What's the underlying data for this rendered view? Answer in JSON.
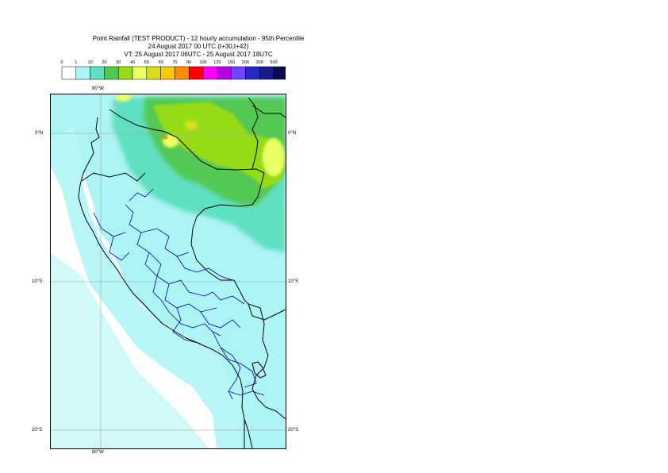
{
  "title": {
    "line1": "Point Rainfall (TEST PRODUCT) - 12 hourly accumulation - 95th Percentile",
    "line2": "24 August 2017 00 UTC (t+30,t+42)",
    "line3": "VT: 25 August 2017 06UTC - 25 August 2017 18UTC"
  },
  "legend": {
    "thresholds": [
      "0",
      "1",
      "10",
      "20",
      "30",
      "40",
      "50",
      "60",
      "70",
      "80",
      "100",
      "125",
      "150",
      "200",
      "300",
      "500"
    ],
    "colors": [
      "#ffffff",
      "#adf4f4",
      "#5fe0c0",
      "#52c852",
      "#96dc19",
      "#ebff64",
      "#dcdc1e",
      "#ffc800",
      "#ff8c00",
      "#ff0000",
      "#ff00ff",
      "#b400dc",
      "#6e46ff",
      "#2828c8",
      "#1a1a8c",
      "#0a0a50"
    ]
  },
  "axes": {
    "lon_top": "80°W",
    "lon_bottom": "80°W",
    "lat_labels": [
      "0°N",
      "10°S",
      "20°S"
    ]
  },
  "colors": {
    "land_outline": "#000000",
    "admin_borders": "#0000b4",
    "graticule": "#a0a0a0"
  }
}
